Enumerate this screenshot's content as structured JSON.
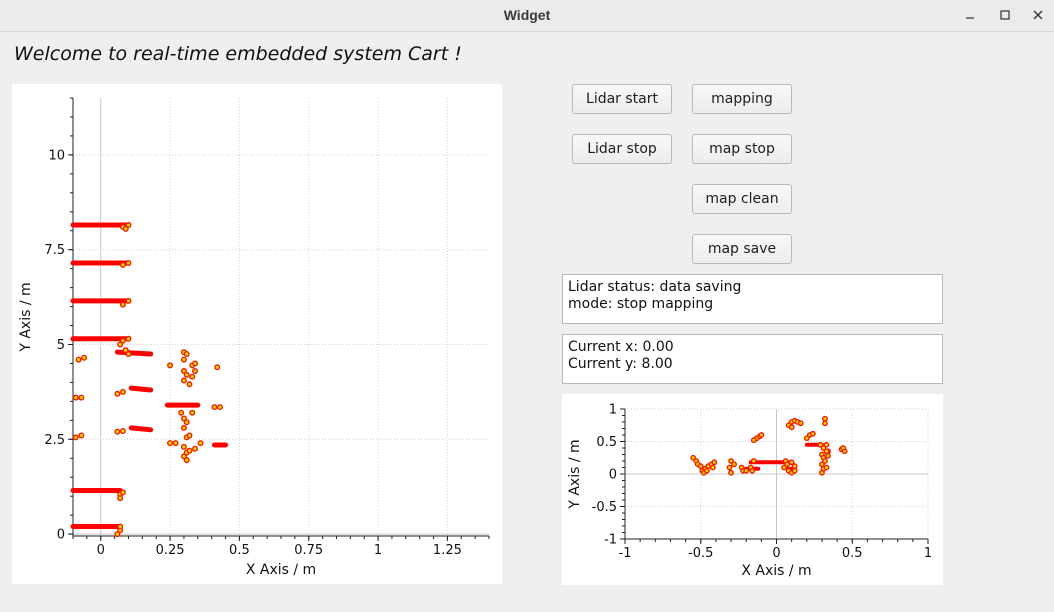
{
  "window": {
    "title": "Widget"
  },
  "welcome_text": "Welcome to real-time embedded system Cart !",
  "buttons": {
    "lidar_start": "Lidar start",
    "lidar_stop": "Lidar stop",
    "mapping": "mapping",
    "map_stop": "map stop",
    "map_clean": "map clean",
    "map_save": "map save"
  },
  "status": {
    "lidar_status": "Lidar status: data saving",
    "mode": "mode: stop mapping"
  },
  "position": {
    "current_x": "Current x: 0.00",
    "current_y": "Current y: 8.00"
  },
  "colors": {
    "point_fill": "#ffd700",
    "point_stroke": "#ee1c00",
    "accent": "#ff0000"
  },
  "chart_data": [
    {
      "type": "scatter",
      "title": "",
      "xlabel": "X Axis / m",
      "ylabel": "Y Axis / m",
      "xlim": [
        -0.1,
        1.4
      ],
      "ylim": [
        -0.05,
        11.5
      ],
      "xticks": [
        0,
        0.25,
        0.5,
        0.75,
        1,
        1.25
      ],
      "xtick_labels": [
        "0",
        "0.25",
        "0.5",
        "0.75",
        "1",
        "1.25"
      ],
      "yticks": [
        0,
        2.5,
        5,
        7.5,
        10
      ],
      "ytick_labels": [
        "0",
        "2.5",
        "5",
        "7.5",
        "10"
      ],
      "grid": true,
      "segments": [
        {
          "x": [
            -0.1,
            0.1
          ],
          "y": [
            8.15,
            8.15
          ]
        },
        {
          "x": [
            -0.1,
            0.1
          ],
          "y": [
            7.15,
            7.15
          ]
        },
        {
          "x": [
            -0.1,
            0.1
          ],
          "y": [
            6.15,
            6.15
          ]
        },
        {
          "x": [
            -0.1,
            0.1
          ],
          "y": [
            5.15,
            5.15
          ]
        },
        {
          "x": [
            -0.1,
            0.07
          ],
          "y": [
            1.15,
            1.15
          ]
        },
        {
          "x": [
            -0.1,
            0.07
          ],
          "y": [
            0.2,
            0.2
          ]
        },
        {
          "x": [
            0.06,
            0.18
          ],
          "y": [
            4.8,
            4.75
          ]
        },
        {
          "x": [
            0.11,
            0.18
          ],
          "y": [
            3.85,
            3.8
          ]
        },
        {
          "x": [
            0.11,
            0.18
          ],
          "y": [
            2.8,
            2.75
          ]
        },
        {
          "x": [
            0.24,
            0.3
          ],
          "y": [
            3.4,
            3.4
          ]
        },
        {
          "x": [
            0.3,
            0.35
          ],
          "y": [
            3.4,
            3.4
          ]
        },
        {
          "x": [
            0.41,
            0.45
          ],
          "y": [
            2.35,
            2.35
          ]
        }
      ],
      "points": [
        [
          0.08,
          8.1
        ],
        [
          0.09,
          8.05
        ],
        [
          0.1,
          8.15
        ],
        [
          0.08,
          7.1
        ],
        [
          0.1,
          7.15
        ],
        [
          0.08,
          6.05
        ],
        [
          0.1,
          6.15
        ],
        [
          0.08,
          5.1
        ],
        [
          0.1,
          5.15
        ],
        [
          0.07,
          5.0
        ],
        [
          0.09,
          4.85
        ],
        [
          0.1,
          4.75
        ],
        [
          0.07,
          1.05
        ],
        [
          0.08,
          1.1
        ],
        [
          0.07,
          0.95
        ],
        [
          0.07,
          0.1
        ],
        [
          0.06,
          0.0
        ],
        [
          0.07,
          0.2
        ],
        [
          -0.08,
          4.6
        ],
        [
          -0.06,
          4.65
        ],
        [
          -0.09,
          3.6
        ],
        [
          -0.07,
          3.6
        ],
        [
          -0.09,
          2.55
        ],
        [
          -0.07,
          2.6
        ],
        [
          0.06,
          3.7
        ],
        [
          0.08,
          3.75
        ],
        [
          0.06,
          2.7
        ],
        [
          0.08,
          2.72
        ],
        [
          0.25,
          4.45
        ],
        [
          0.3,
          4.8
        ],
        [
          0.31,
          4.75
        ],
        [
          0.3,
          4.6
        ],
        [
          0.3,
          4.3
        ],
        [
          0.31,
          4.2
        ],
        [
          0.3,
          4.05
        ],
        [
          0.32,
          3.95
        ],
        [
          0.33,
          4.45
        ],
        [
          0.34,
          4.3
        ],
        [
          0.34,
          4.5
        ],
        [
          0.33,
          4.15
        ],
        [
          0.42,
          4.4
        ],
        [
          0.41,
          3.35
        ],
        [
          0.43,
          3.35
        ],
        [
          0.29,
          3.2
        ],
        [
          0.3,
          3.05
        ],
        [
          0.31,
          2.95
        ],
        [
          0.3,
          2.8
        ],
        [
          0.31,
          2.55
        ],
        [
          0.33,
          3.2
        ],
        [
          0.32,
          2.6
        ],
        [
          0.3,
          2.3
        ],
        [
          0.31,
          2.15
        ],
        [
          0.3,
          2.05
        ],
        [
          0.31,
          1.95
        ],
        [
          0.32,
          2.2
        ],
        [
          0.34,
          2.25
        ],
        [
          0.36,
          2.4
        ],
        [
          0.25,
          2.4
        ],
        [
          0.27,
          2.4
        ]
      ]
    },
    {
      "type": "scatter",
      "title": "",
      "xlabel": "X Axis / m",
      "ylabel": "Y Axis / m",
      "xlim": [
        -1,
        1
      ],
      "ylim": [
        -1,
        1
      ],
      "xticks": [
        -1,
        -0.5,
        0,
        0.5,
        1
      ],
      "xtick_labels": [
        "-1",
        "-0.5",
        "0",
        "0.5",
        "1"
      ],
      "yticks": [
        -1,
        -0.5,
        0,
        0.5,
        1
      ],
      "ytick_labels": [
        "-1",
        "-0.5",
        "0",
        "0.5",
        "1"
      ],
      "grid": true,
      "segments": [
        {
          "x": [
            -0.17,
            0.08
          ],
          "y": [
            0.18,
            0.18
          ]
        },
        {
          "x": [
            -0.2,
            -0.12
          ],
          "y": [
            0.08,
            0.08
          ]
        },
        {
          "x": [
            0.2,
            0.3
          ],
          "y": [
            0.45,
            0.45
          ]
        },
        {
          "x": [
            0.08,
            0.12
          ],
          "y": [
            0.08,
            0.08
          ]
        }
      ],
      "points": [
        [
          -0.55,
          0.25
        ],
        [
          -0.53,
          0.2
        ],
        [
          -0.52,
          0.15
        ],
        [
          -0.5,
          0.12
        ],
        [
          -0.49,
          0.05
        ],
        [
          -0.48,
          0.02
        ],
        [
          -0.47,
          0.08
        ],
        [
          -0.45,
          0.12
        ],
        [
          -0.43,
          0.15
        ],
        [
          -0.42,
          0.1
        ],
        [
          -0.41,
          0.18
        ],
        [
          -0.46,
          0.05
        ],
        [
          -0.3,
          0.2
        ],
        [
          -0.31,
          0.1
        ],
        [
          -0.3,
          0.02
        ],
        [
          -0.28,
          0.15
        ],
        [
          -0.23,
          0.1
        ],
        [
          -0.22,
          0.05
        ],
        [
          -0.2,
          0.05
        ],
        [
          -0.17,
          0.1
        ],
        [
          -0.15,
          0.2
        ],
        [
          -0.16,
          0.05
        ],
        [
          -0.13,
          0.55
        ],
        [
          -0.11,
          0.58
        ],
        [
          -0.1,
          0.6
        ],
        [
          -0.15,
          0.52
        ],
        [
          0.05,
          0.1
        ],
        [
          0.06,
          0.2
        ],
        [
          0.07,
          0.15
        ],
        [
          0.08,
          0.05
        ],
        [
          0.1,
          0.18
        ],
        [
          0.12,
          0.12
        ],
        [
          0.1,
          0.02
        ],
        [
          0.12,
          0.05
        ],
        [
          0.08,
          0.75
        ],
        [
          0.1,
          0.8
        ],
        [
          0.12,
          0.82
        ],
        [
          0.14,
          0.8
        ],
        [
          0.16,
          0.78
        ],
        [
          0.1,
          0.72
        ],
        [
          0.22,
          0.6
        ],
        [
          0.2,
          0.55
        ],
        [
          0.24,
          0.62
        ],
        [
          0.32,
          0.85
        ],
        [
          0.32,
          0.78
        ],
        [
          0.29,
          0.45
        ],
        [
          0.31,
          0.4
        ],
        [
          0.33,
          0.45
        ],
        [
          0.34,
          0.35
        ],
        [
          0.3,
          0.3
        ],
        [
          0.31,
          0.25
        ],
        [
          0.3,
          0.15
        ],
        [
          0.31,
          0.08
        ],
        [
          0.3,
          0.02
        ],
        [
          0.32,
          0.2
        ],
        [
          0.33,
          0.1
        ],
        [
          0.34,
          0.28
        ],
        [
          0.33,
          0.35
        ],
        [
          0.43,
          0.38
        ],
        [
          0.45,
          0.35
        ],
        [
          0.44,
          0.4
        ]
      ]
    }
  ]
}
